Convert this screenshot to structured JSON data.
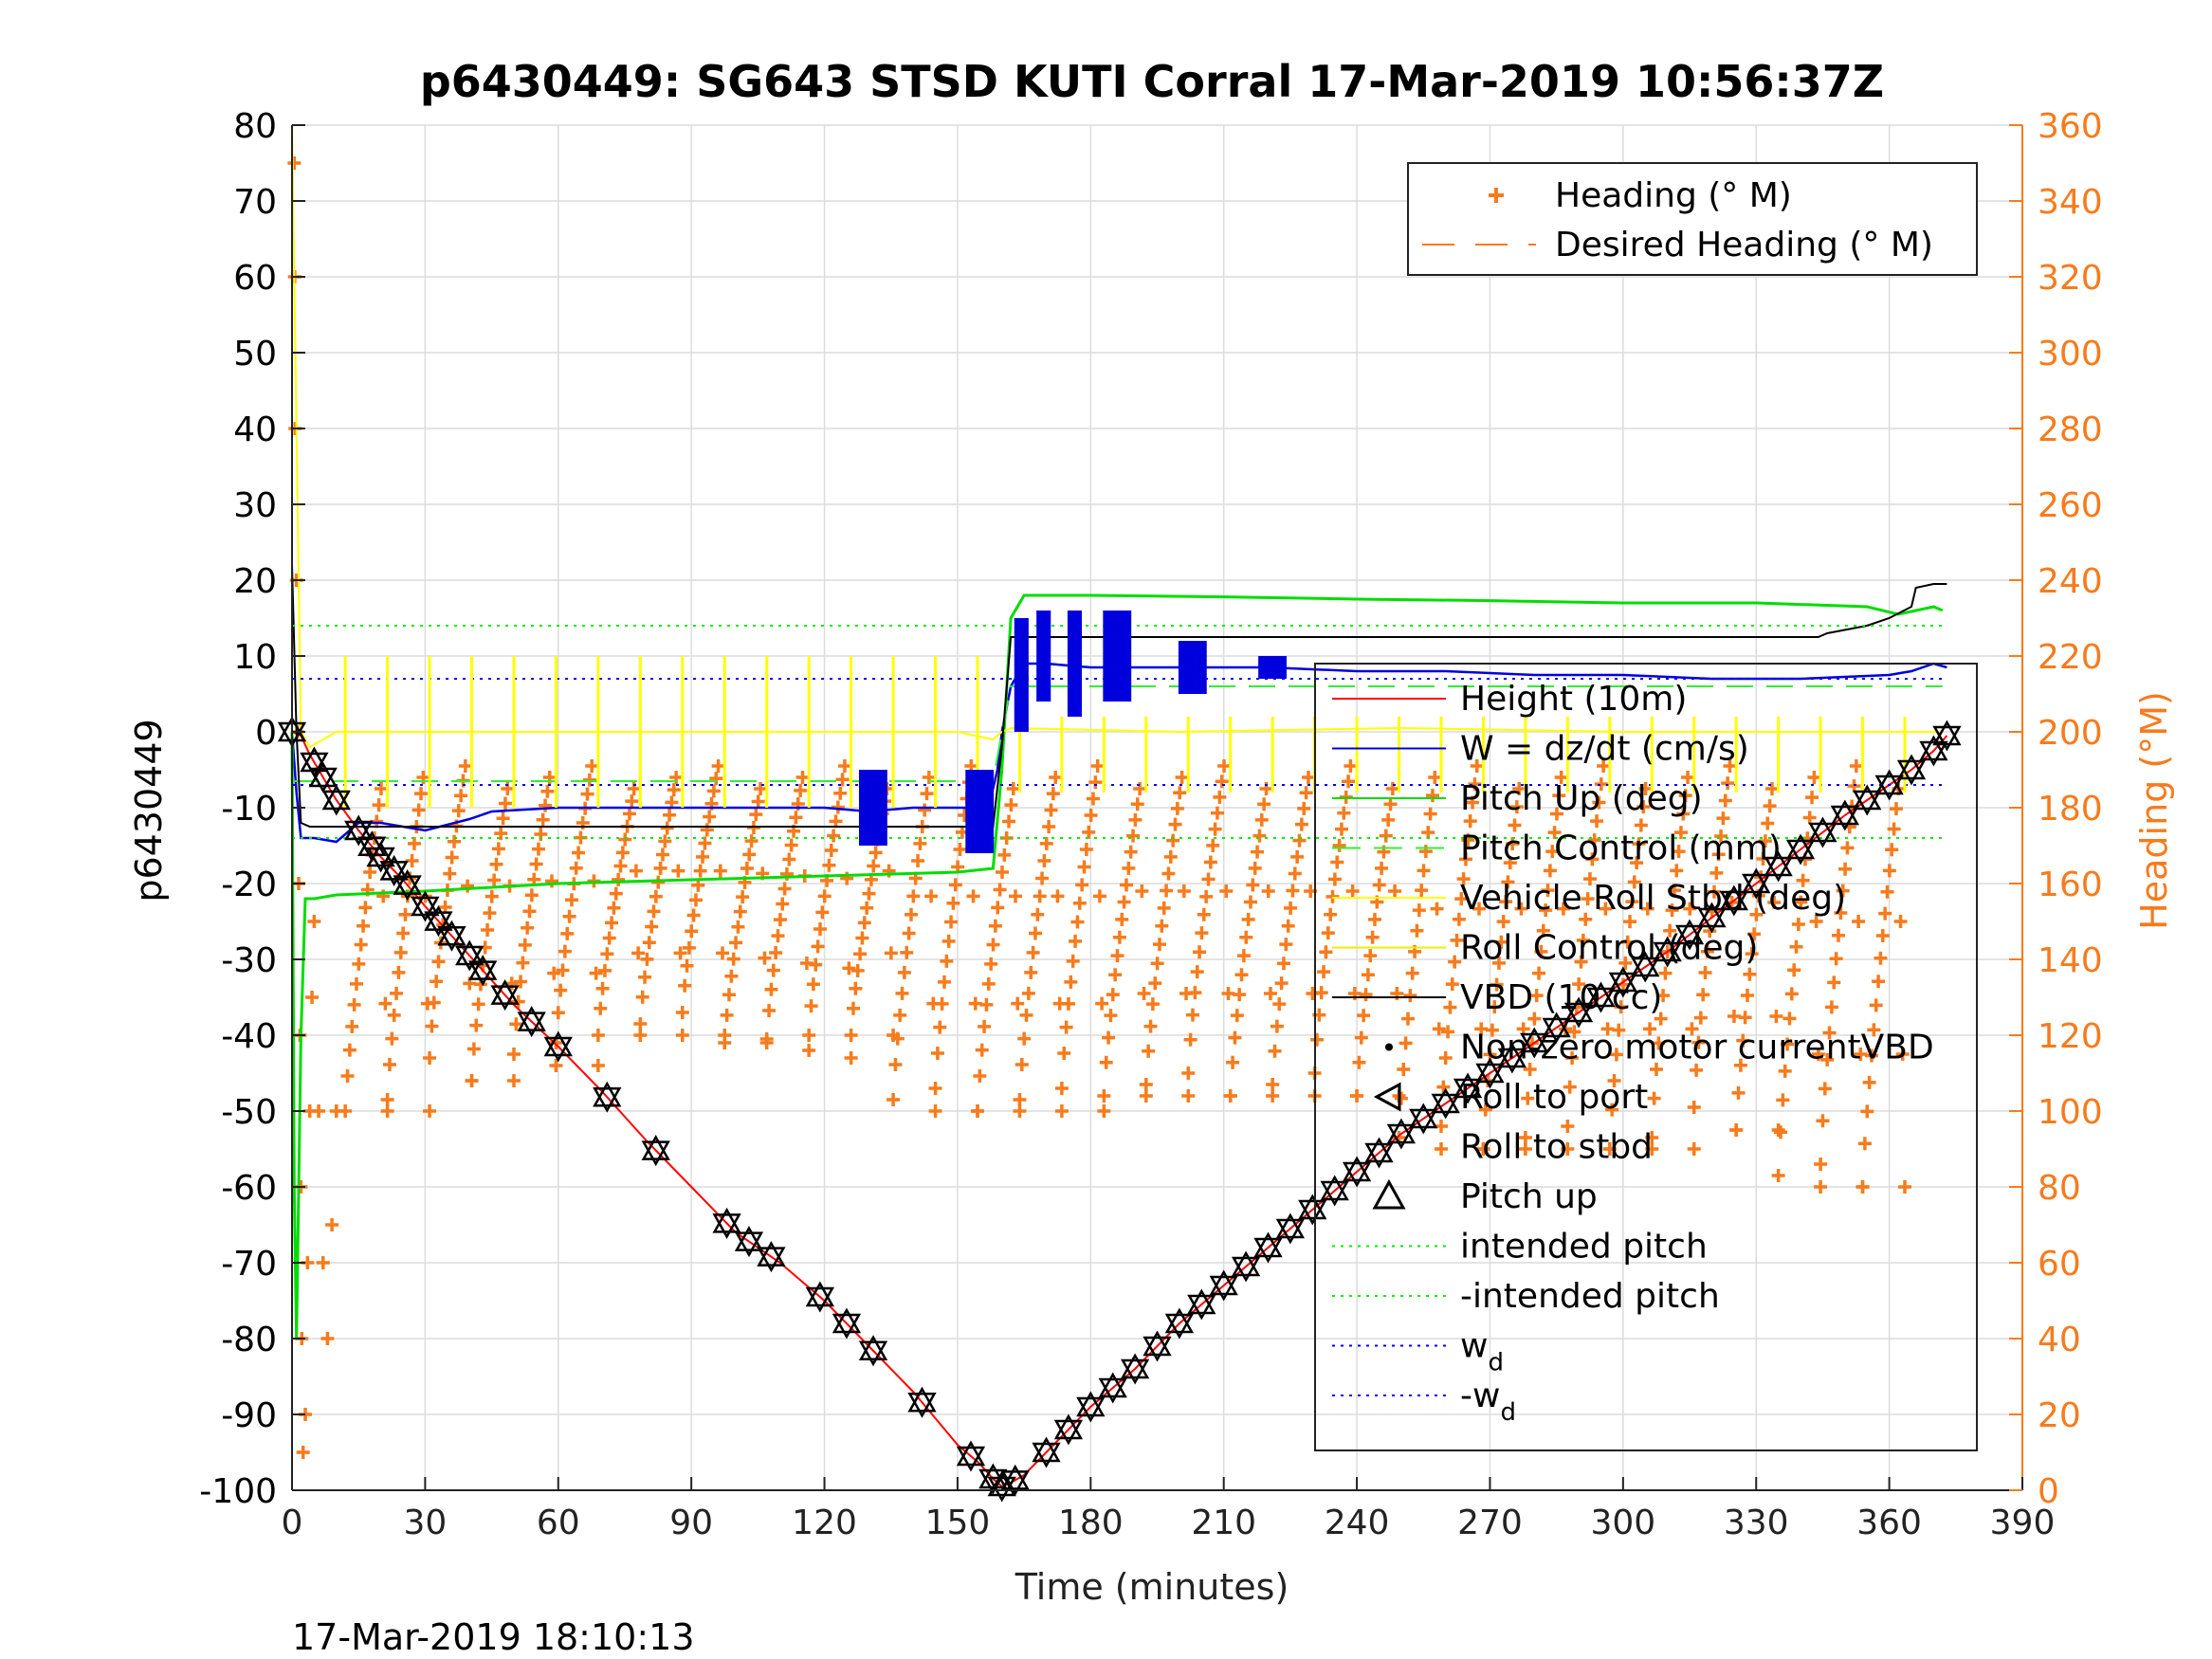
{
  "chart_data": {
    "type": "line",
    "title": "p6430449: SG643 STSD KUTI Corral 17-Mar-2019 10:56:37Z",
    "xlabel": "Time (minutes)",
    "ylabel": "p6430449",
    "ylabel_right": "Heading (°M)",
    "footer": "17-Mar-2019 18:10:13",
    "xlim": [
      0,
      390
    ],
    "ylim": [
      -100,
      80
    ],
    "ylim_right": [
      0,
      360
    ],
    "xticks": [
      0,
      30,
      60,
      90,
      120,
      150,
      180,
      210,
      240,
      270,
      300,
      330,
      360,
      390
    ],
    "yticks": [
      -100,
      -90,
      -80,
      -70,
      -60,
      -50,
      -40,
      -30,
      -20,
      -10,
      0,
      10,
      20,
      30,
      40,
      50,
      60,
      70,
      80
    ],
    "yticks_right": [
      0,
      20,
      40,
      60,
      80,
      100,
      120,
      140,
      160,
      180,
      200,
      220,
      240,
      260,
      280,
      300,
      320,
      340,
      360
    ],
    "grid": true,
    "colors": {
      "height": "#ff0000",
      "w": "#0000dd",
      "pitch_up": "#00dd00",
      "pitch_control": "#33ee33",
      "roll": "#ffff00",
      "roll_control": "#eeee00",
      "vbd": "#000000",
      "heading": "#f77b1c",
      "intended_pitch": "#00ee00",
      "wd": "#0000ff",
      "axis_right": "#f77b1c"
    },
    "legend_right_axis": {
      "placement": "top-right",
      "entries": [
        "Heading (° M)",
        "Desired Heading (° M)"
      ]
    },
    "legend_left_axis": {
      "placement": "center-right",
      "entries": [
        "Height (10m)",
        "W = dz/dt (cm/s)",
        "Pitch Up (deg)",
        "Pitch Control (mm)",
        "Vehicle Roll Stbd (deg)",
        "Roll Control (deg)",
        "VBD (10 cc)",
        "Non-zero motor currentVBD",
        "Roll to port",
        "Roll to stbd",
        "Pitch up",
        "intended pitch",
        "-intended pitch",
        "w",
        "-w"
      ],
      "subscript": "d"
    },
    "series": [
      {
        "name": "Height (10m)",
        "x": [
          0,
          2,
          4,
          6,
          8,
          10,
          15,
          20,
          25,
          30,
          40,
          50,
          60,
          70,
          80,
          90,
          100,
          110,
          120,
          130,
          140,
          150,
          155,
          158,
          160,
          162,
          165,
          170,
          180,
          190,
          200,
          210,
          220,
          230,
          240,
          250,
          260,
          270,
          280,
          290,
          300,
          310,
          320,
          330,
          340,
          350,
          360,
          365,
          370,
          373
        ],
        "y": [
          0,
          -0.5,
          -3,
          -5,
          -7,
          -9,
          -13,
          -16.5,
          -19.5,
          -23,
          -29.5,
          -36,
          -41.5,
          -47.5,
          -54,
          -60,
          -66,
          -70,
          -75,
          -81,
          -87,
          -94,
          -96.5,
          -98.5,
          -99.5,
          -99,
          -98,
          -95,
          -89,
          -84,
          -78,
          -73,
          -68,
          -63,
          -58,
          -53,
          -49,
          -45,
          -41,
          -37,
          -33,
          -29,
          -24.5,
          -20,
          -15.5,
          -11,
          -7,
          -5,
          -2.5,
          -0.5
        ]
      },
      {
        "name": "W = dz/dt (cm/s)",
        "x": [
          0,
          1,
          2,
          5,
          10,
          15,
          20,
          30,
          40,
          45,
          60,
          80,
          100,
          120,
          130,
          140,
          150,
          157,
          159,
          160,
          162,
          165,
          170,
          180,
          190,
          200,
          220,
          240,
          260,
          280,
          300,
          320,
          340,
          360,
          365,
          370,
          373
        ],
        "y": [
          0,
          -8,
          -14,
          -14,
          -14.5,
          -12,
          -12,
          -13,
          -11.5,
          -10.5,
          -10,
          -10,
          -10,
          -10,
          -10.5,
          -10,
          -10,
          -10,
          -5,
          0,
          6,
          9,
          9,
          8.5,
          8.5,
          8.5,
          8.5,
          8,
          8,
          7.5,
          7.5,
          7,
          7,
          7.5,
          8,
          9,
          8.5
        ]
      },
      {
        "name": "Pitch Up (deg)",
        "x": [
          0,
          0.5,
          1,
          2,
          3,
          5,
          10,
          30,
          60,
          90,
          120,
          150,
          158,
          160,
          162,
          165,
          180,
          210,
          240,
          270,
          300,
          330,
          355,
          362,
          366,
          370,
          372
        ],
        "y": [
          0,
          -60,
          -80,
          -40,
          -22,
          -22,
          -21.5,
          -21,
          -20,
          -19.5,
          -19,
          -18.5,
          -18,
          -5,
          15,
          18,
          18,
          17.8,
          17.5,
          17.3,
          17,
          17,
          16.5,
          15.5,
          16,
          16.5,
          16
        ]
      },
      {
        "name": "Pitch Control (mm)",
        "x": [
          0,
          30,
          60,
          90,
          120,
          150,
          158,
          160,
          162,
          170,
          200,
          250,
          300,
          350,
          372
        ],
        "y": [
          -6.5,
          -6.5,
          -6.5,
          -6.5,
          -6.5,
          -6.5,
          -6.5,
          0,
          6,
          6,
          6,
          6,
          6,
          6,
          6
        ]
      },
      {
        "name": "Vehicle Roll Stbd (deg)",
        "x": [
          0,
          1,
          2,
          4,
          10,
          50,
          100,
          150,
          158,
          160,
          162,
          200,
          250,
          300,
          350,
          365,
          370,
          372
        ],
        "y": [
          80,
          40,
          0,
          -2,
          0,
          0,
          0,
          0,
          -1,
          0,
          0.5,
          0,
          0.5,
          0,
          0,
          0,
          0,
          0
        ]
      },
      {
        "name": "VBD (10 cc)",
        "x": [
          0,
          1,
          2,
          4,
          158,
          160,
          162,
          200,
          260,
          300,
          344,
          346,
          355,
          360,
          365,
          366,
          370,
          373
        ],
        "y": [
          22,
          0,
          -12,
          -12.5,
          -12.5,
          -2,
          12.5,
          12.5,
          12.5,
          12.5,
          12.5,
          13,
          14,
          15,
          16.5,
          19,
          19.5,
          19.5
        ]
      },
      {
        "name": "intended pitch",
        "x": [
          0,
          372
        ],
        "y": [
          14,
          14
        ]
      },
      {
        "name": "-intended pitch",
        "x": [
          0,
          372
        ],
        "y": [
          -14,
          -14
        ]
      },
      {
        "name": "w",
        "x": [
          0,
          372
        ],
        "y": [
          7,
          7
        ]
      },
      {
        "name": "-w",
        "x": [
          0,
          372
        ],
        "y": [
          -7,
          -7
        ]
      }
    ],
    "heading_series": {
      "name": "Heading (° M)",
      "axis": "right",
      "sawtooth_min": [
        100,
        100,
        108,
        108,
        112,
        112,
        120,
        120,
        120,
        118,
        116,
        114,
        120,
        100,
        100,
        100,
        100,
        100,
        104,
        104,
        104,
        104,
        104,
        104,
        104,
        90,
        90,
        90,
        90,
        90,
        90,
        90,
        95,
        95,
        80,
        80,
        80
      ],
      "sawtooth_start_x": 12,
      "sawtooth_period": 9.5,
      "sawtooth_max": 185
    },
    "markers": {
      "pitch_up_x": [
        0,
        5,
        7,
        10,
        15,
        18,
        20,
        23,
        26,
        30,
        33,
        36,
        40,
        43,
        48,
        54,
        60,
        71,
        82,
        98,
        103,
        108,
        119,
        125,
        131,
        142,
        153,
        158,
        160,
        163,
        170,
        175,
        180,
        185,
        190,
        195,
        200,
        205,
        210,
        215,
        220,
        225,
        230,
        235,
        240,
        245,
        250,
        255,
        260,
        265,
        270,
        275,
        280,
        285,
        290,
        295,
        300,
        305,
        310,
        315,
        320,
        325,
        330,
        335,
        340,
        345,
        350,
        355,
        360,
        365,
        370,
        373
      ]
    }
  }
}
